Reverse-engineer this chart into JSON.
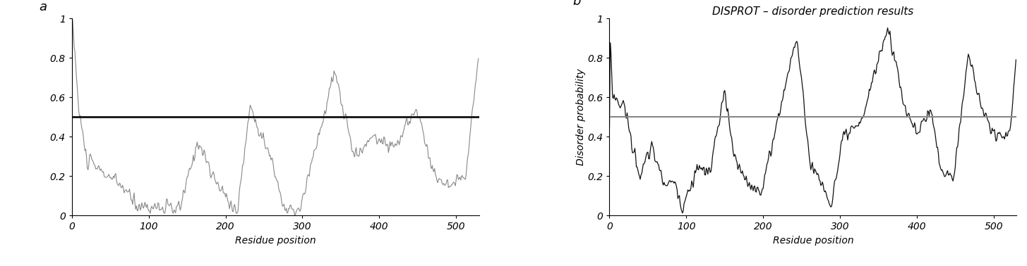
{
  "panel_a": {
    "label": "a",
    "ylabel": "",
    "xlabel": "Residue position",
    "threshold": 0.5,
    "threshold_color": "#111111",
    "threshold_lw": 2.0,
    "line_color": "#888888",
    "line_lw": 0.8,
    "ylim": [
      0,
      1.0
    ],
    "xlim": [
      0,
      530
    ],
    "yticks": [
      0,
      0.2,
      0.4,
      0.6,
      0.8,
      1
    ],
    "xticks": [
      0,
      100,
      200,
      300,
      400,
      500
    ]
  },
  "panel_b": {
    "label": "b",
    "title": "DISPROT – disorder prediction results",
    "ylabel": "Disorder probability",
    "xlabel": "Residue position",
    "threshold": 0.5,
    "threshold_color": "#888888",
    "threshold_lw": 1.5,
    "line_color": "#111111",
    "line_lw": 0.9,
    "ylim": [
      0,
      1.0
    ],
    "xlim": [
      0,
      530
    ],
    "yticks": [
      0,
      0.2,
      0.4,
      0.6,
      0.8,
      1
    ],
    "xticks": [
      0,
      100,
      200,
      300,
      400,
      500
    ]
  },
  "background_color": "#ffffff",
  "tick_fontsize": 10,
  "label_fontsize": 10,
  "title_fontsize": 11
}
